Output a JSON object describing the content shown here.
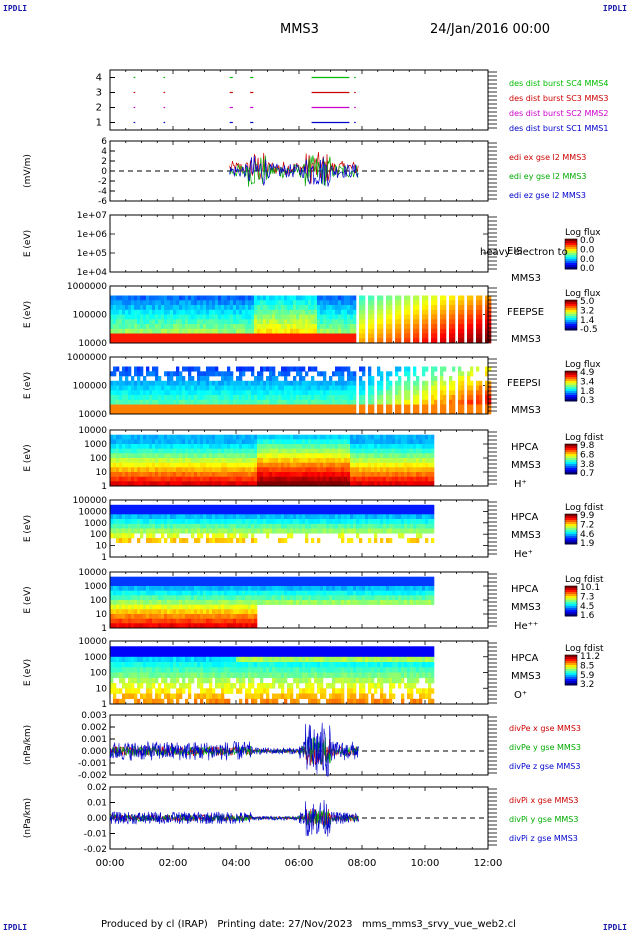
{
  "header": {
    "corner": "IPDLI",
    "spacecraft": "MMS3",
    "date": "24/Jan/2016 00:00"
  },
  "footer": {
    "text": "Produced by cl (IRAP)   Printing date: 27/Nov/2023   mms_mms3_srvy_vue_web2.cl"
  },
  "chart_data": [
    {
      "type": "line",
      "panel": "burst",
      "ylim": [
        0.5,
        4.5
      ],
      "yticks": [
        1,
        2,
        3,
        4
      ],
      "series": [
        {
          "name": "des dist burst SC1 MMS1",
          "color": "#0000cc",
          "y": 1,
          "intervals": [
            [
              0.75,
              0.8
            ],
            [
              1.7,
              1.75
            ],
            [
              3.8,
              3.9
            ],
            [
              4.45,
              4.55
            ],
            [
              6.4,
              7.6
            ],
            [
              7.75,
              7.8
            ]
          ]
        },
        {
          "name": "des dist burst SC2 MMS2",
          "color": "#cc00cc",
          "y": 2,
          "intervals": [
            [
              0.75,
              0.8
            ],
            [
              1.7,
              1.75
            ],
            [
              3.8,
              3.9
            ],
            [
              4.45,
              4.55
            ],
            [
              6.4,
              7.6
            ],
            [
              7.75,
              7.8
            ]
          ]
        },
        {
          "name": "des dist burst SC3 MMS3",
          "color": "#cc0000",
          "y": 3,
          "intervals": [
            [
              0.75,
              0.8
            ],
            [
              1.7,
              1.75
            ],
            [
              3.8,
              3.9
            ],
            [
              4.45,
              4.55
            ],
            [
              6.4,
              7.6
            ],
            [
              7.75,
              7.8
            ]
          ]
        },
        {
          "name": "des dist burst SC4 MMS4",
          "color": "#00bb00",
          "y": 4,
          "intervals": [
            [
              0.75,
              0.8
            ],
            [
              1.7,
              1.75
            ],
            [
              3.8,
              3.9
            ],
            [
              4.45,
              4.55
            ],
            [
              6.4,
              7.6
            ],
            [
              7.75,
              7.8
            ]
          ]
        }
      ]
    },
    {
      "type": "line",
      "panel": "edi",
      "ylabel": "(mV/m)",
      "ylim": [
        -6,
        6
      ],
      "yticks": [
        -6,
        -4,
        -2,
        0,
        2,
        4,
        6
      ],
      "active_range": [
        3.8,
        7.9
      ],
      "series": [
        {
          "name": "edi ex gse l2 MMS3",
          "color": "#cc0000"
        },
        {
          "name": "edi ey gse l2 MMS3",
          "color": "#00aa00"
        },
        {
          "name": "edi ez gse l2 MMS3",
          "color": "#0000cc"
        }
      ]
    },
    {
      "type": "heatmap",
      "panel": "eis",
      "ylabel": "E (eV)",
      "yticks": [
        "1e+04",
        "1e+05",
        "1e+06",
        "1e+07"
      ],
      "instrument": [
        "EIS",
        "MMS3"
      ],
      "note": "heavy electron to",
      "cbar_title": "Log flux",
      "cbar_ticks": [
        "0.0",
        "0.0",
        "0.0",
        "0.0"
      ]
    },
    {
      "type": "heatmap",
      "panel": "feepse",
      "ylabel": "E (eV)",
      "yticks": [
        "10000",
        "100000",
        "1000000"
      ],
      "instrument": [
        "FEEPSE",
        "MMS3"
      ],
      "cbar_title": "Log flux",
      "cbar_ticks": [
        "5.0",
        "3.2",
        "1.4",
        "-0.5"
      ],
      "active_range": [
        0,
        12
      ]
    },
    {
      "type": "heatmap",
      "panel": "feepsi",
      "ylabel": "E (eV)",
      "yticks": [
        "10000",
        "100000",
        "1000000"
      ],
      "instrument": [
        "FEEPSI",
        "MMS3"
      ],
      "cbar_title": "Log flux",
      "cbar_ticks": [
        "4.9",
        "3.4",
        "1.8",
        "0.3"
      ],
      "active_range": [
        0,
        12
      ]
    },
    {
      "type": "heatmap",
      "panel": "hpca_h",
      "ylabel": "E (eV)",
      "yticks": [
        "1",
        "10",
        "100",
        "1000",
        "10000"
      ],
      "instrument": [
        "HPCA",
        "MMS3",
        "H⁺"
      ],
      "cbar_title": "Log fdist",
      "cbar_ticks": [
        "9.8",
        "6.8",
        "3.8",
        "0.7"
      ],
      "active_range": [
        0,
        10.2
      ]
    },
    {
      "type": "heatmap",
      "panel": "hpca_he",
      "ylabel": "E (eV)",
      "yticks": [
        "1",
        "10",
        "100",
        "1000",
        "10000",
        "100000"
      ],
      "instrument": [
        "HPCA",
        "MMS3",
        "He⁺"
      ],
      "cbar_title": "Log fdist",
      "cbar_ticks": [
        "9.9",
        "7.2",
        "4.6",
        "1.9"
      ],
      "active_range": [
        0,
        10.2
      ]
    },
    {
      "type": "heatmap",
      "panel": "hpca_hepp",
      "ylabel": "E (eV)",
      "yticks": [
        "1",
        "10",
        "100",
        "1000",
        "10000"
      ],
      "instrument": [
        "HPCA",
        "MMS3",
        "He⁺⁺"
      ],
      "cbar_title": "Log fdist",
      "cbar_ticks": [
        "10.1",
        "7.3",
        "4.5",
        "1.6"
      ],
      "active_range": [
        0,
        10.2
      ]
    },
    {
      "type": "heatmap",
      "panel": "hpca_o",
      "ylabel": "E (eV)",
      "yticks": [
        "1",
        "10",
        "100",
        "1000",
        "10000"
      ],
      "instrument": [
        "HPCA",
        "MMS3",
        "O⁺"
      ],
      "cbar_title": "Log fdist",
      "cbar_ticks": [
        "11.2",
        "8.5",
        "5.9",
        "3.2"
      ],
      "active_range": [
        0,
        10.2
      ]
    },
    {
      "type": "line",
      "panel": "divpe",
      "ylabel": "(nPa/km)",
      "ylim": [
        -0.002,
        0.003
      ],
      "yticks": [
        "-0.002",
        "-0.001",
        "0.000",
        "0.001",
        "0.002",
        "0.003"
      ],
      "active_range": [
        0,
        7.9
      ],
      "series": [
        {
          "name": "divPe x gse MMS3",
          "color": "#cc0000"
        },
        {
          "name": "divPe y gse MMS3",
          "color": "#00aa00"
        },
        {
          "name": "divPe z gse MMS3",
          "color": "#0000cc"
        }
      ]
    },
    {
      "type": "line",
      "panel": "divpi",
      "ylabel": "(nPa/km)",
      "ylim": [
        -0.02,
        0.02
      ],
      "yticks": [
        "-0.02",
        "-0.01",
        "0.00",
        "0.01",
        "0.02"
      ],
      "active_range": [
        0,
        7.9
      ],
      "series": [
        {
          "name": "divPi x gse MMS3",
          "color": "#cc0000"
        },
        {
          "name": "divPi y gse MMS3",
          "color": "#00aa00"
        },
        {
          "name": "divPi z gse MMS3",
          "color": "#0000cc"
        }
      ]
    }
  ],
  "x_axis": {
    "ticks": [
      "00:00",
      "02:00",
      "04:00",
      "06:00",
      "08:00",
      "10:00",
      "12:00"
    ],
    "range_hours": [
      0,
      12
    ]
  }
}
